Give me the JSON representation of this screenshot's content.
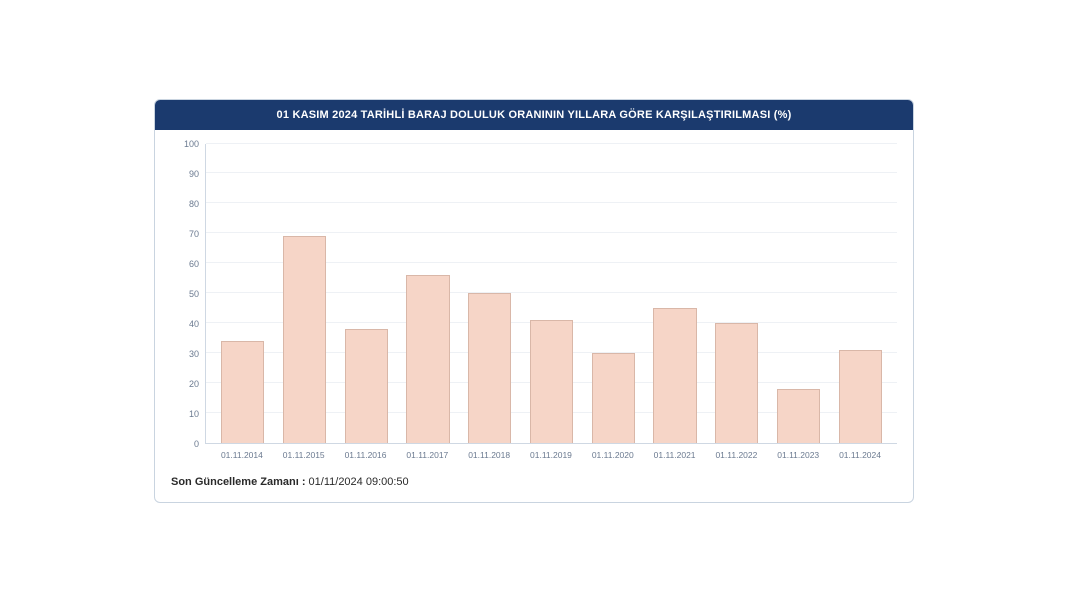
{
  "chart": {
    "type": "bar",
    "title": "01 KASIM 2024 TARİHLİ BARAJ DOLULUK ORANININ YILLARA GÖRE KARŞILAŞTIRILMASI (%)",
    "header_bg": "#1b3a6e",
    "header_text_color": "#ffffff",
    "card_border_color": "#c9d4e0",
    "categories": [
      "01.11.2014",
      "01.11.2015",
      "01.11.2016",
      "01.11.2017",
      "01.11.2018",
      "01.11.2019",
      "01.11.2020",
      "01.11.2021",
      "01.11.2022",
      "01.11.2023",
      "01.11.2024"
    ],
    "values": [
      34,
      69,
      38,
      56,
      50,
      41,
      30,
      45,
      40,
      18,
      31
    ],
    "bar_color": "#f6d5c7",
    "bar_border_color": "#d9b7a8",
    "bar_width_ratio": 0.7,
    "ylim": [
      0,
      100
    ],
    "ytick_step": 10,
    "grid_color": "#eef1f5",
    "axis_color": "#cfd8e3",
    "tick_label_color": "#6b7a90",
    "tick_fontsize": 9,
    "xlabel_fontsize": 8.5,
    "title_fontsize": 11,
    "background_color": "#ffffff"
  },
  "footer": {
    "label": "Son Güncelleme Zamanı :",
    "value": "01/11/2024 09:00:50"
  }
}
